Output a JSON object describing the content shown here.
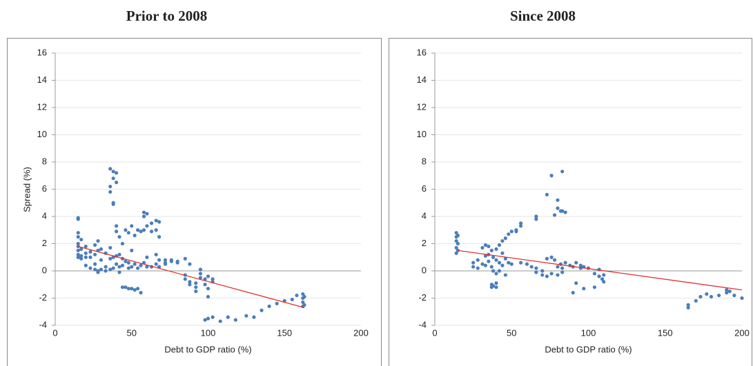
{
  "chart_data": [
    {
      "type": "scatter",
      "title": "Prior to 2008",
      "xlabel": "Debt to GDP ratio (%)",
      "ylabel": "Spread (%)",
      "xlim": [
        0,
        200
      ],
      "ylim": [
        -4,
        16
      ],
      "xticks": [
        0,
        50,
        100,
        150,
        200
      ],
      "yticks": [
        -4,
        -2,
        0,
        2,
        4,
        6,
        8,
        10,
        12,
        14,
        16
      ],
      "grid": true,
      "series": [
        {
          "color": "#4a7ebb",
          "x": [
            15,
            15,
            15,
            15,
            15,
            15,
            15,
            15,
            15,
            17,
            17,
            17,
            17,
            20,
            20,
            20,
            20,
            23,
            23,
            23,
            26,
            26,
            26,
            26,
            28,
            28,
            28,
            28,
            30,
            30,
            30,
            33,
            33,
            33,
            36,
            36,
            36,
            36,
            36,
            36,
            38,
            38,
            38,
            38,
            38,
            38,
            40,
            40,
            40,
            40,
            40,
            40,
            42,
            42,
            42,
            42,
            44,
            44,
            44,
            44,
            46,
            46,
            46,
            48,
            48,
            48,
            48,
            50,
            50,
            50,
            50,
            52,
            52,
            52,
            54,
            54,
            54,
            56,
            56,
            56,
            58,
            58,
            58,
            58,
            60,
            60,
            60,
            60,
            63,
            63,
            63,
            66,
            66,
            66,
            66,
            68,
            68,
            68,
            68,
            72,
            72,
            72,
            76,
            76,
            80,
            80,
            85,
            85,
            85,
            88,
            88,
            88,
            92,
            92,
            92,
            95,
            95,
            95,
            98,
            98,
            98,
            100,
            100,
            100,
            100,
            103,
            103,
            103,
            108,
            113,
            118,
            125,
            130,
            135,
            140,
            145,
            150,
            155,
            158,
            162,
            162,
            162,
            162,
            163,
            163
          ],
          "values": [
            3.9,
            3.8,
            2.8,
            2.5,
            2.0,
            1.8,
            1.5,
            1.2,
            1.0,
            2.3,
            1.6,
            1.1,
            0.9,
            1.8,
            1.3,
            1.0,
            0.4,
            1.4,
            1.0,
            0.2,
            1.9,
            1.2,
            0.5,
            0.1,
            2.2,
            1.5,
            0.0,
            -0.1,
            1.6,
            0.8,
            0.1,
            1.3,
            0.3,
            0.0,
            7.5,
            6.2,
            5.8,
            1.7,
            0.9,
            0.1,
            7.3,
            6.8,
            5.0,
            4.9,
            1.0,
            0.2,
            7.2,
            6.5,
            3.3,
            2.9,
            1.1,
            0.5,
            2.5,
            1.2,
            0.3,
            -0.1,
            2.0,
            0.9,
            0.4,
            -1.2,
            3.0,
            0.7,
            -1.2,
            2.8,
            0.6,
            0.2,
            -1.3,
            3.3,
            1.5,
            0.3,
            -1.3,
            2.6,
            0.5,
            -1.4,
            3.0,
            0.2,
            -1.3,
            2.9,
            0.4,
            -1.6,
            4.3,
            4.0,
            3.0,
            0.6,
            4.2,
            3.3,
            1.0,
            0.3,
            3.5,
            2.9,
            0.3,
            3.7,
            3.0,
            1.2,
            0.5,
            3.6,
            2.5,
            0.8,
            0.3,
            0.8,
            0.5,
            0.6,
            0.8,
            0.7,
            0.7,
            0.6,
            0.9,
            -0.3,
            -0.6,
            0.5,
            -0.8,
            -1.0,
            -0.9,
            -1.2,
            -1.5,
            0.1,
            -0.2,
            -0.5,
            -0.6,
            -1.0,
            -3.6,
            -0.4,
            -1.3,
            -1.9,
            -3.5,
            -0.6,
            -0.8,
            -3.4,
            -3.7,
            -3.4,
            -3.6,
            -3.3,
            -3.4,
            -2.9,
            -2.6,
            -2.4,
            -2.2,
            -2.1,
            -1.8,
            -1.7,
            -2.0,
            -2.3,
            -2.6,
            -1.9,
            -2.5
          ]
        }
      ],
      "trendline": {
        "color": "#e03030",
        "x": [
          15,
          163
        ],
        "values": [
          1.8,
          -2.7
        ]
      }
    },
    {
      "type": "scatter",
      "title": "Since 2008",
      "xlabel": "Debt to GDP ratio (%)",
      "xlim": [
        0,
        200
      ],
      "ylim": [
        -4,
        16
      ],
      "xticks": [
        0,
        50,
        100,
        150,
        200
      ],
      "yticks": [
        -4,
        -2,
        0,
        2,
        4,
        6,
        8,
        10,
        12,
        14,
        16
      ],
      "grid": true,
      "series": [
        {
          "color": "#4a7ebb",
          "x": [
            14,
            14,
            14,
            14,
            14,
            15,
            15,
            15,
            25,
            25,
            28,
            28,
            31,
            31,
            33,
            33,
            33,
            35,
            35,
            35,
            37,
            37,
            37,
            37,
            38,
            38,
            38,
            40,
            40,
            40,
            40,
            40,
            42,
            42,
            42,
            44,
            44,
            44,
            46,
            46,
            46,
            48,
            48,
            50,
            50,
            53,
            53,
            56,
            56,
            56,
            60,
            63,
            66,
            66,
            66,
            66,
            70,
            70,
            73,
            73,
            73,
            76,
            76,
            76,
            78,
            78,
            80,
            80,
            80,
            80,
            82,
            82,
            83,
            83,
            83,
            83,
            85,
            85,
            88,
            90,
            90,
            92,
            92,
            95,
            95,
            97,
            97,
            100,
            104,
            104,
            107,
            107,
            109,
            110,
            110,
            165,
            165,
            170,
            173,
            177,
            180,
            185,
            190,
            190,
            192,
            195,
            200
          ],
          "values": [
            2.8,
            2.5,
            2.2,
            1.7,
            1.3,
            2.6,
            2.0,
            1.5,
            0.3,
            0.6,
            0.8,
            0.2,
            1.7,
            0.5,
            1.9,
            1.1,
            0.4,
            1.8,
            1.2,
            0.7,
            1.5,
            0.3,
            -1.0,
            -1.2,
            1.0,
            0.0,
            -1.1,
            1.6,
            0.8,
            -0.2,
            -1.2,
            -0.9,
            1.9,
            0.6,
            0.0,
            2.2,
            1.3,
            0.4,
            2.4,
            0.9,
            -0.3,
            2.7,
            0.6,
            2.9,
            0.5,
            3.0,
            2.9,
            3.3,
            3.5,
            0.6,
            0.5,
            0.3,
            3.8,
            4.0,
            0.2,
            -0.1,
            0.0,
            -0.3,
            5.6,
            0.9,
            -0.4,
            7.0,
            1.0,
            -0.2,
            4.1,
            0.8,
            5.2,
            4.6,
            0.3,
            -0.3,
            4.4,
            0.5,
            7.3,
            4.4,
            0.2,
            -0.1,
            4.3,
            0.6,
            0.4,
            -1.6,
            0.3,
            0.6,
            -0.9,
            0.4,
            0.2,
            -1.3,
            0.3,
            0.2,
            -1.2,
            -0.2,
            0.1,
            -0.4,
            -0.6,
            -0.3,
            -0.8,
            -2.5,
            -2.7,
            -2.2,
            -1.9,
            -1.7,
            -1.9,
            -1.8,
            -1.4,
            -1.6,
            -1.5,
            -1.8,
            -2.0
          ]
        }
      ],
      "trendline": {
        "color": "#e03030",
        "x": [
          15,
          200
        ],
        "values": [
          1.5,
          -1.4
        ]
      }
    }
  ]
}
